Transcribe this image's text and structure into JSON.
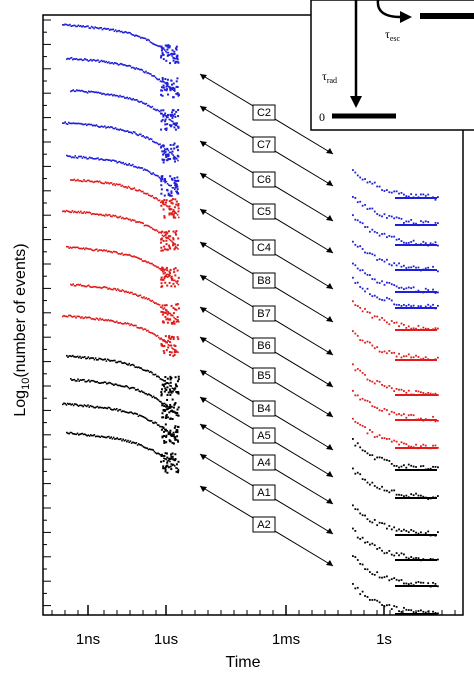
{
  "chart_data": {
    "type": "scatter",
    "title": "",
    "xlabel": "Time",
    "ylabel_main": "Log",
    "ylabel_sub": "10",
    "ylabel_rest": "(number of events)",
    "x_ticks": [
      "1ns",
      "1us",
      "1ms",
      "1s"
    ],
    "x_scale": "log",
    "series_colors": {
      "C": "#1f1fd6",
      "B": "#e01b1b",
      "A": "#000000"
    },
    "pairs": [
      {
        "name": "C2",
        "group": "C"
      },
      {
        "name": "C7",
        "group": "C"
      },
      {
        "name": "C6",
        "group": "C"
      },
      {
        "name": "C5",
        "group": "C"
      },
      {
        "name": "C4",
        "group": "C"
      },
      {
        "name": "B8",
        "group": "B"
      },
      {
        "name": "B7",
        "group": "B"
      },
      {
        "name": "B6",
        "group": "B"
      },
      {
        "name": "B5",
        "group": "B"
      },
      {
        "name": "B4",
        "group": "B"
      },
      {
        "name": "A5",
        "group": "A"
      },
      {
        "name": "A4",
        "group": "A"
      },
      {
        "name": "A1",
        "group": "A"
      },
      {
        "name": "A2",
        "group": "A"
      }
    ],
    "inset": {
      "labels": {
        "tau_rad": "τ",
        "tau_rad_sub": "rad",
        "tau_esc": "τ",
        "tau_esc_sub": "esc",
        "ground": "0"
      }
    }
  }
}
